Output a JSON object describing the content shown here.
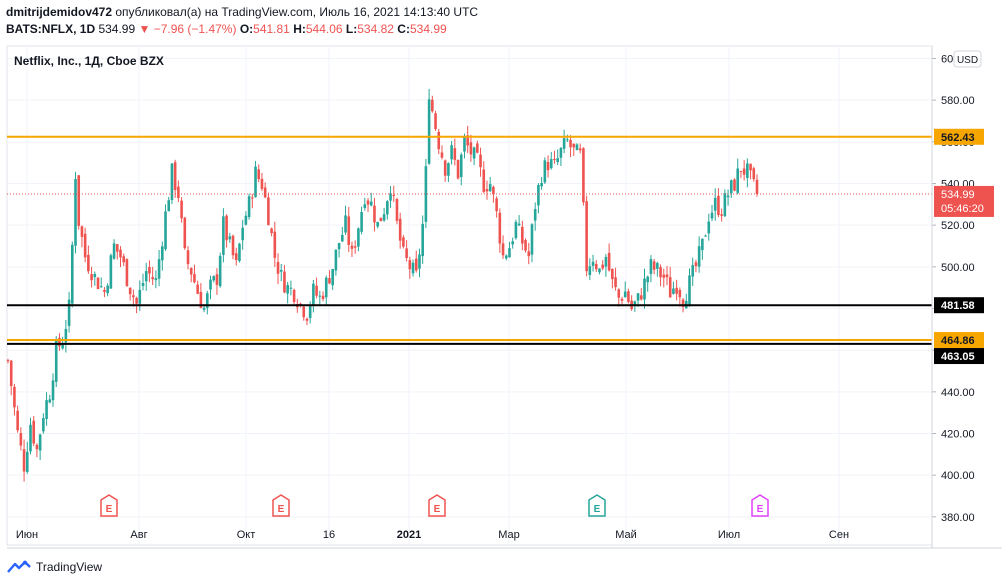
{
  "header": {
    "author": "dmitrijdemidov472",
    "published_text": "опубликовал(а) на TradingView.com, Июль 16, 2021 14:13:40 UTC",
    "symbol": "BATS:NFLX, 1D",
    "last": "534.99",
    "change": "−7.96 (−1.47%)",
    "o_label": "O:",
    "o_value": "541.81",
    "h_label": "H:",
    "h_value": "544.06",
    "l_label": "L:",
    "l_value": "534.82",
    "c_label": "C:",
    "c_value": "534.99"
  },
  "footer": {
    "brand": "TradingView"
  },
  "colors": {
    "up": "#26a69a",
    "down": "#ef5350",
    "orange": "#f7a600",
    "black": "#000000"
  },
  "chart_data": {
    "type": "candlestick",
    "title": "Netflix, Inc., 1Д, Cboe BZX",
    "currency": "USD",
    "ylim": [
      378,
      606
    ],
    "y_ticks": [
      380,
      400,
      420,
      440,
      460,
      480,
      500,
      520,
      540,
      560,
      580,
      600
    ],
    "y_tick_labels": [
      "380.00",
      "400.00",
      "420.00",
      "440.00",
      "460.00",
      "480.00",
      "500.00",
      "520.00",
      "540.00",
      "560.00",
      "580.00",
      "600.00"
    ],
    "x_ticks": [
      {
        "label": "Июн",
        "bold": false
      },
      {
        "label": "Авг",
        "bold": false
      },
      {
        "label": "Окт",
        "bold": false
      },
      {
        "label": "16",
        "bold": false
      },
      {
        "label": "2021",
        "bold": true
      },
      {
        "label": "Мар",
        "bold": false
      },
      {
        "label": "Май",
        "bold": false
      },
      {
        "label": "Июл",
        "bold": false
      },
      {
        "label": "Сен",
        "bold": false
      }
    ],
    "horizontal_lines": [
      {
        "value": 562.43,
        "label": "562.43",
        "color": "#f7a600"
      },
      {
        "value": 481.58,
        "label": "481.58",
        "color": "#000000"
      },
      {
        "value": 464.86,
        "label": "464.86",
        "color": "#f7a600"
      },
      {
        "value": 463.05,
        "label": "463.05",
        "color": "#000000"
      }
    ],
    "last_price": {
      "value": 534.99,
      "label": "534.99",
      "countdown": "05:46:20"
    },
    "earnings": [
      {
        "date_index": 0,
        "label": "E",
        "color": "#ef5350"
      },
      {
        "date_index": 1,
        "label": "E",
        "color": "#ef5350"
      },
      {
        "date_index": 2,
        "label": "E",
        "color": "#ef5350"
      },
      {
        "date_index": 3,
        "label": "E",
        "color": "#26a69a"
      },
      {
        "date_index": 4,
        "label": "E",
        "color": "#e040fb"
      }
    ],
    "price_path": [
      [
        0,
        455
      ],
      [
        3,
        420
      ],
      [
        5,
        405
      ],
      [
        7,
        425
      ],
      [
        9,
        412
      ],
      [
        11,
        430
      ],
      [
        13,
        440
      ],
      [
        15,
        460
      ],
      [
        17,
        465
      ],
      [
        19,
        480
      ],
      [
        20,
        510
      ],
      [
        21,
        545
      ],
      [
        22,
        522
      ],
      [
        24,
        505
      ],
      [
        27,
        495
      ],
      [
        30,
        488
      ],
      [
        33,
        510
      ],
      [
        35,
        505
      ],
      [
        38,
        490
      ],
      [
        40,
        482
      ],
      [
        43,
        498
      ],
      [
        46,
        493
      ],
      [
        49,
        525
      ],
      [
        51,
        545
      ],
      [
        53,
        535
      ],
      [
        55,
        505
      ],
      [
        57,
        498
      ],
      [
        59,
        488
      ],
      [
        61,
        480
      ],
      [
        63,
        490
      ],
      [
        65,
        495
      ],
      [
        67,
        520
      ],
      [
        69,
        510
      ],
      [
        71,
        500
      ],
      [
        73,
        520
      ],
      [
        75,
        530
      ],
      [
        77,
        545
      ],
      [
        79,
        540
      ],
      [
        81,
        525
      ],
      [
        83,
        505
      ],
      [
        85,
        495
      ],
      [
        87,
        490
      ],
      [
        89,
        488
      ],
      [
        91,
        482
      ],
      [
        93,
        478
      ],
      [
        95,
        488
      ],
      [
        97,
        485
      ],
      [
        99,
        492
      ],
      [
        101,
        500
      ],
      [
        103,
        512
      ],
      [
        105,
        520
      ],
      [
        107,
        505
      ],
      [
        109,
        520
      ],
      [
        111,
        535
      ],
      [
        113,
        530
      ],
      [
        115,
        520
      ],
      [
        117,
        528
      ],
      [
        119,
        540
      ],
      [
        121,
        520
      ],
      [
        123,
        505
      ],
      [
        125,
        500
      ],
      [
        127,
        495
      ],
      [
        129,
        520
      ],
      [
        130,
        545
      ],
      [
        131,
        585
      ],
      [
        132,
        575
      ],
      [
        134,
        560
      ],
      [
        136,
        548
      ],
      [
        138,
        555
      ],
      [
        140,
        545
      ],
      [
        142,
        560
      ],
      [
        144,
        555
      ],
      [
        146,
        550
      ],
      [
        148,
        540
      ],
      [
        150,
        540
      ],
      [
        152,
        525
      ],
      [
        154,
        505
      ],
      [
        156,
        510
      ],
      [
        158,
        520
      ],
      [
        160,
        512
      ],
      [
        162,
        505
      ],
      [
        164,
        530
      ],
      [
        166,
        545
      ],
      [
        168,
        550
      ],
      [
        170,
        548
      ],
      [
        172,
        555
      ],
      [
        174,
        560
      ],
      [
        176,
        555
      ],
      [
        178,
        553
      ],
      [
        180,
        500
      ],
      [
        182,
        505
      ],
      [
        184,
        498
      ],
      [
        186,
        505
      ],
      [
        188,
        492
      ],
      [
        190,
        485
      ],
      [
        192,
        488
      ],
      [
        194,
        480
      ],
      [
        196,
        484
      ],
      [
        198,
        492
      ],
      [
        200,
        500
      ],
      [
        202,
        498
      ],
      [
        204,
        495
      ],
      [
        206,
        488
      ],
      [
        208,
        492
      ],
      [
        210,
        485
      ],
      [
        212,
        492
      ],
      [
        214,
        500
      ],
      [
        216,
        510
      ],
      [
        218,
        525
      ],
      [
        220,
        530
      ],
      [
        222,
        528
      ],
      [
        224,
        535
      ],
      [
        226,
        540
      ],
      [
        228,
        548
      ],
      [
        230,
        545
      ],
      [
        232,
        538
      ],
      [
        233,
        534.99
      ]
    ]
  }
}
